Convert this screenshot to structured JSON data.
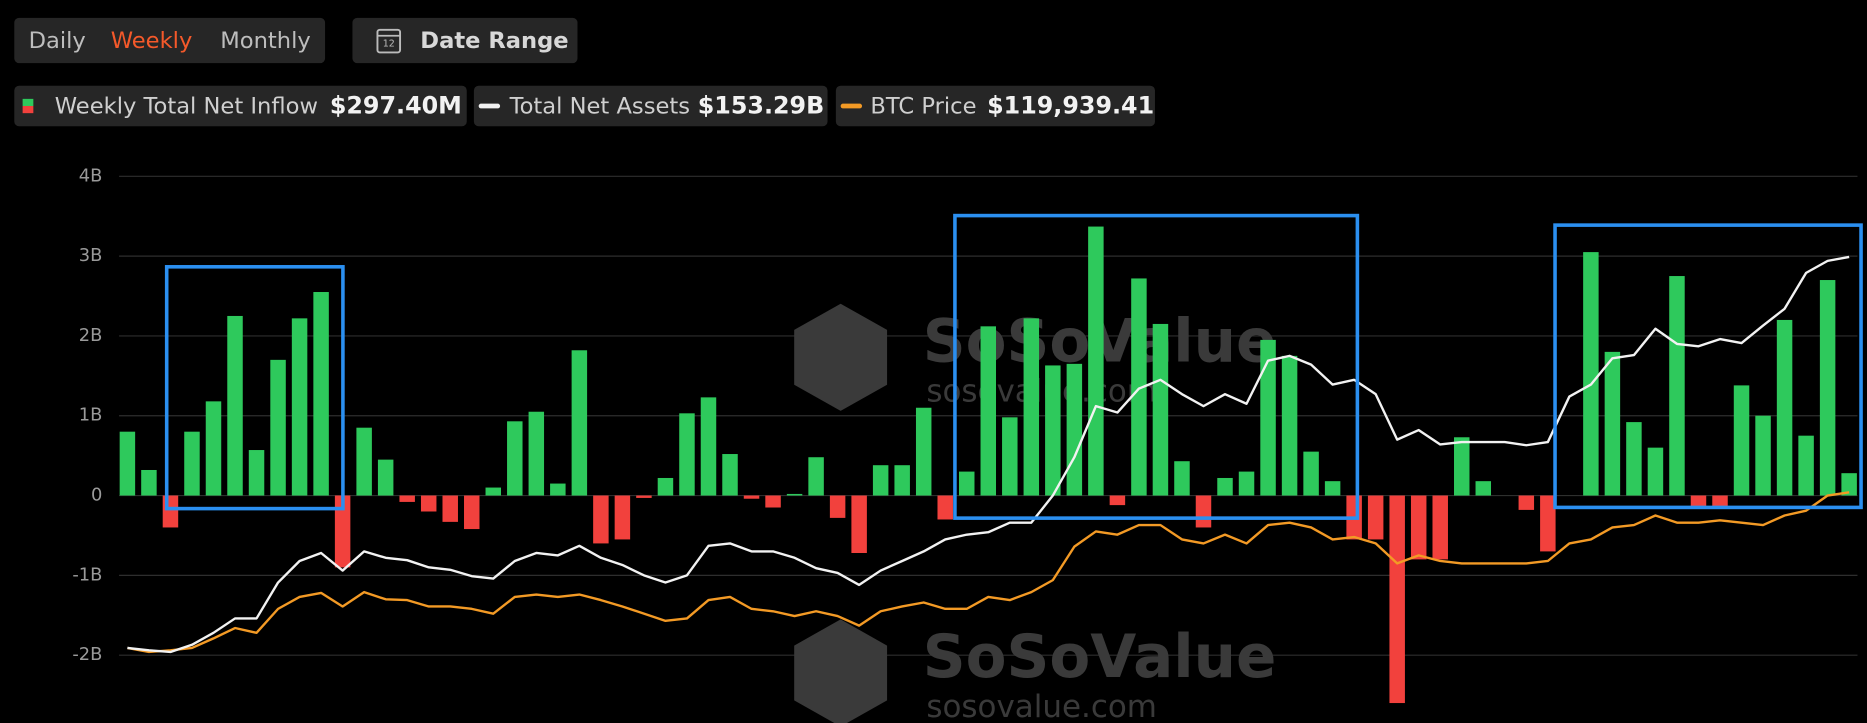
{
  "tabs": [
    "Daily",
    "Weekly",
    "Monthly"
  ],
  "active_tab": 1,
  "date_range_button": "Date Range",
  "calendar_icon_label": "12",
  "watermark": {
    "brand": "SoSoValue",
    "site": "sosovalue.com"
  },
  "chart_data": {
    "type": "bar-line",
    "ylim": [
      -2.85,
      4.0
    ],
    "yticks": [
      {
        "value": 4,
        "label": "4B"
      },
      {
        "value": 3,
        "label": "3B"
      },
      {
        "value": 2,
        "label": "2B"
      },
      {
        "value": 1,
        "label": "1B"
      },
      0,
      {
        "value": -1,
        "label": "-1B"
      },
      {
        "value": -2,
        "label": "-2B"
      }
    ],
    "grid": true,
    "series": [
      {
        "name": "Weekly Total Net Inflow",
        "legend_value": "$297.40M",
        "kind": "bar",
        "positive_color": "#2ec95c",
        "negative_color": "#f2413d",
        "values": [
          0.8,
          0.32,
          -0.4,
          0.8,
          1.18,
          2.25,
          0.57,
          1.7,
          2.22,
          2.55,
          -0.9,
          0.85,
          0.45,
          -0.08,
          -0.2,
          -0.33,
          -0.42,
          0.1,
          0.93,
          1.05,
          0.15,
          1.82,
          -0.6,
          -0.55,
          -0.03,
          0.22,
          1.03,
          1.23,
          0.52,
          -0.04,
          -0.15,
          0.02,
          0.48,
          -0.28,
          -0.72,
          0.38,
          0.38,
          1.1,
          -0.3,
          0.3,
          2.12,
          0.98,
          2.22,
          1.63,
          1.65,
          3.37,
          -0.12,
          2.72,
          2.15,
          0.43,
          -0.4,
          0.22,
          0.3,
          1.95,
          1.75,
          0.55,
          0.18,
          -0.55,
          -0.55,
          -2.6,
          -0.8,
          -0.8,
          0.73,
          0.18,
          0,
          -0.18,
          -0.7,
          0,
          3.05,
          1.8,
          0.92,
          0.6,
          2.75,
          -0.15,
          -0.15,
          1.38,
          1.0,
          2.2,
          0.75,
          2.7,
          0.28
        ]
      },
      {
        "name": "Total Net Assets",
        "legend_value": "$153.29B",
        "kind": "line",
        "color": "#f2f2f2",
        "values": [
          -1.91,
          -1.94,
          -1.96,
          -1.87,
          -1.72,
          -1.54,
          -1.54,
          -1.09,
          -0.82,
          -0.72,
          -0.94,
          -0.7,
          -0.78,
          -0.81,
          -0.9,
          -0.93,
          -1.01,
          -1.04,
          -0.82,
          -0.72,
          -0.75,
          -0.63,
          -0.78,
          -0.87,
          -1.0,
          -1.09,
          -1.0,
          -0.63,
          -0.6,
          -0.7,
          -0.7,
          -0.78,
          -0.91,
          -0.97,
          -1.12,
          -0.94,
          -0.82,
          -0.7,
          -0.55,
          -0.49,
          -0.46,
          -0.34,
          -0.34,
          0,
          0.48,
          1.12,
          1.04,
          1.34,
          1.45,
          1.27,
          1.12,
          1.27,
          1.15,
          1.69,
          1.75,
          1.64,
          1.39,
          1.45,
          1.27,
          0.7,
          0.82,
          0.64,
          0.67,
          0.67,
          0.67,
          0.63,
          0.67,
          1.24,
          1.39,
          1.72,
          1.76,
          2.09,
          1.9,
          1.87,
          1.96,
          1.91,
          2.13,
          2.34,
          2.79,
          2.94,
          2.99
        ]
      },
      {
        "name": "BTC Price",
        "legend_value": "$119,939.41",
        "kind": "line",
        "color": "#f39a25",
        "values": [
          -1.91,
          -1.96,
          -1.94,
          -1.91,
          -1.79,
          -1.66,
          -1.72,
          -1.42,
          -1.27,
          -1.22,
          -1.39,
          -1.21,
          -1.3,
          -1.31,
          -1.39,
          -1.39,
          -1.42,
          -1.48,
          -1.27,
          -1.24,
          -1.27,
          -1.24,
          -1.31,
          -1.39,
          -1.48,
          -1.57,
          -1.54,
          -1.31,
          -1.27,
          -1.42,
          -1.45,
          -1.51,
          -1.45,
          -1.51,
          -1.63,
          -1.45,
          -1.39,
          -1.34,
          -1.42,
          -1.42,
          -1.27,
          -1.31,
          -1.21,
          -1.06,
          -0.64,
          -0.45,
          -0.49,
          -0.37,
          -0.37,
          -0.55,
          -0.6,
          -0.49,
          -0.6,
          -0.37,
          -0.34,
          -0.4,
          -0.55,
          -0.52,
          -0.6,
          -0.85,
          -0.75,
          -0.82,
          -0.85,
          -0.85,
          -0.85,
          -0.85,
          -0.82,
          -0.6,
          -0.55,
          -0.4,
          -0.37,
          -0.25,
          -0.34,
          -0.34,
          -0.31,
          -0.34,
          -0.37,
          -0.25,
          -0.19,
          0,
          0.04
        ]
      }
    ]
  }
}
